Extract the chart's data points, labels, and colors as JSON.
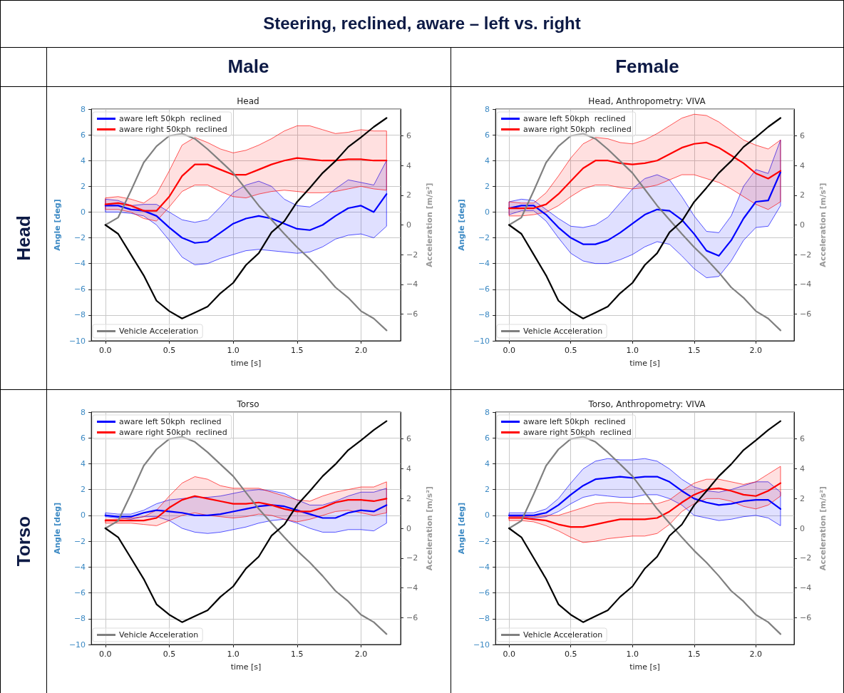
{
  "chart_data": [
    {
      "type": "other",
      "title": "Steering, reclined, aware – left vs. right",
      "annotations": [
        "Male",
        "Female",
        "Head",
        "Torso"
      ]
    },
    {
      "type": "line",
      "title": "Head",
      "xlabel": "time [s]",
      "ylabel": "Angle [deg]",
      "y2label": "Acceleration [m/s²]",
      "x": [
        0,
        0.1,
        0.2,
        0.3,
        0.4,
        0.5,
        0.6,
        0.7,
        0.8,
        0.9,
        1.0,
        1.1,
        1.2,
        1.3,
        1.4,
        1.5,
        1.6,
        1.7,
        1.8,
        1.9,
        2.0,
        2.1,
        2.2
      ],
      "series": [
        {
          "name": "aware left 50kph  reclined",
          "color": "#0000ff",
          "values": [
            0.5,
            0.5,
            0.2,
            0.1,
            -0.3,
            -1.2,
            -2.0,
            -2.4,
            -2.3,
            -1.6,
            -0.9,
            -0.5,
            -0.3,
            -0.5,
            -0.9,
            -1.3,
            -1.4,
            -1.0,
            -0.3,
            0.3,
            0.5,
            0.0,
            1.4
          ],
          "upper": [
            1.0,
            0.9,
            0.5,
            0.6,
            0.6,
            0.0,
            -0.6,
            -0.8,
            -0.6,
            0.4,
            1.5,
            2.1,
            2.4,
            2.0,
            1.0,
            0.5,
            0.4,
            1.0,
            1.8,
            2.5,
            2.3,
            2.1,
            4.0
          ],
          "lower": [
            0.0,
            0.0,
            -0.1,
            -0.3,
            -1.0,
            -2.2,
            -3.5,
            -4.1,
            -4.0,
            -3.6,
            -3.3,
            -3.0,
            -2.9,
            -3.0,
            -3.1,
            -3.2,
            -3.1,
            -2.7,
            -2.1,
            -1.8,
            -1.7,
            -2.0,
            -1.1
          ]
        },
        {
          "name": "aware right 50kph  reclined",
          "color": "#ff0000",
          "values": [
            0.6,
            0.7,
            0.5,
            0.1,
            0.1,
            1.2,
            2.8,
            3.7,
            3.7,
            3.3,
            2.9,
            2.9,
            3.3,
            3.7,
            4.0,
            4.2,
            4.1,
            4.0,
            4.0,
            4.1,
            4.1,
            4.0,
            4.0
          ],
          "upper": [
            1.1,
            1.2,
            1.0,
            0.7,
            1.4,
            3.2,
            5.2,
            5.8,
            5.4,
            4.9,
            4.6,
            4.8,
            5.2,
            5.7,
            6.3,
            6.7,
            6.7,
            6.4,
            6.1,
            6.2,
            6.4,
            6.3,
            6.3
          ],
          "lower": [
            0.2,
            0.2,
            0.0,
            -0.5,
            -0.7,
            0.4,
            1.6,
            2.1,
            2.1,
            1.6,
            1.2,
            1.1,
            1.4,
            1.6,
            1.7,
            1.6,
            1.5,
            1.5,
            1.6,
            1.8,
            2.0,
            1.8,
            1.7
          ]
        },
        {
          "name": "Vehicle Acceleration",
          "color": "#808080",
          "axis": "y2",
          "values": [
            0,
            0.5,
            2.3,
            4.2,
            5.3,
            6.0,
            6.15,
            5.8,
            5.1,
            4.3,
            3.5,
            2.4,
            1.3,
            0.35,
            -0.6,
            -1.5,
            -2.3,
            -3.2,
            -4.2,
            -4.9,
            -5.8,
            -6.3,
            -7.1
          ]
        },
        {
          "color": "#000000",
          "axis": "y2",
          "values": [
            0,
            -0.6,
            -2.0,
            -3.4,
            -5.1,
            -5.8,
            -6.3,
            -5.9,
            -5.5,
            -4.6,
            -3.9,
            -2.7,
            -1.9,
            -0.5,
            0.25,
            1.55,
            2.5,
            3.5,
            4.3,
            5.25,
            5.9,
            6.6,
            7.2
          ]
        }
      ],
      "xlim": [
        -0.11,
        2.31
      ],
      "xticks": [
        {
          "value": 0,
          "label": "0.0"
        },
        {
          "value": 0.5,
          "label": "0.5"
        },
        {
          "value": 1,
          "label": "1.0"
        },
        {
          "value": 1.5,
          "label": "1.5"
        },
        {
          "value": 2,
          "label": "2.0"
        }
      ],
      "ylim": [
        -10,
        8
      ],
      "yticks": [
        {
          "value": -10,
          "label": "−10"
        },
        {
          "value": -8,
          "label": "−8"
        },
        {
          "value": -6,
          "label": "−6"
        },
        {
          "value": -4,
          "label": "−4"
        },
        {
          "value": -2,
          "label": "−2"
        },
        0,
        2,
        4,
        6,
        8
      ],
      "y2lim": [
        -7.8,
        7.8
      ],
      "y2ticks": [
        {
          "value": -6,
          "label": "−6"
        },
        {
          "value": -4,
          "label": "−4"
        },
        {
          "value": -2,
          "label": "−2"
        },
        0,
        2,
        4,
        6
      ],
      "grid": true,
      "legend": "top left",
      "line_style": "solid"
    },
    {
      "type": "line",
      "title": "Head, Anthropometry: VIVA",
      "xlabel": "time [s]",
      "ylabel": "Angle [deg]",
      "y2label": "Acceleration [m/s²]",
      "x": [
        0,
        0.1,
        0.2,
        0.3,
        0.4,
        0.5,
        0.6,
        0.7,
        0.8,
        0.9,
        1.0,
        1.1,
        1.2,
        1.3,
        1.4,
        1.5,
        1.6,
        1.7,
        1.8,
        1.9,
        2.0,
        2.1,
        2.2
      ],
      "series": [
        {
          "name": "aware left 50kph  reclined",
          "color": "#0000ff",
          "values": [
            0.3,
            0.5,
            0.5,
            -0.2,
            -1.2,
            -2.0,
            -2.5,
            -2.5,
            -2.2,
            -1.6,
            -0.9,
            -0.2,
            0.2,
            0.1,
            -0.6,
            -1.7,
            -3.0,
            -3.4,
            -2.2,
            -0.5,
            0.8,
            0.9,
            3.1
          ],
          "upper": [
            0.8,
            1.0,
            0.9,
            0.2,
            -0.5,
            -1.1,
            -1.2,
            -1.0,
            -0.4,
            0.7,
            1.8,
            2.6,
            2.9,
            2.5,
            1.2,
            -0.3,
            -1.5,
            -1.6,
            -0.3,
            2.0,
            3.3,
            3.0,
            5.6
          ],
          "lower": [
            -0.2,
            0.1,
            0.1,
            -0.7,
            -2.0,
            -3.2,
            -3.8,
            -4.0,
            -4.0,
            -3.7,
            -3.3,
            -2.7,
            -2.3,
            -2.5,
            -3.4,
            -4.4,
            -5.1,
            -5.0,
            -3.8,
            -2.2,
            -1.2,
            -1.1,
            0.5
          ]
        },
        {
          "name": "aware right 50kph  reclined",
          "color": "#ff0000",
          "values": [
            0.3,
            0.3,
            0.3,
            0.6,
            1.4,
            2.4,
            3.4,
            4.0,
            4.0,
            3.8,
            3.7,
            3.8,
            4.0,
            4.5,
            5.0,
            5.3,
            5.4,
            5.0,
            4.4,
            3.8,
            3.0,
            2.6,
            3.2
          ],
          "upper": [
            0.8,
            0.7,
            0.7,
            1.5,
            2.8,
            4.2,
            5.3,
            5.8,
            5.7,
            5.4,
            5.3,
            5.6,
            6.1,
            6.7,
            7.3,
            7.6,
            7.5,
            7.0,
            6.3,
            5.6,
            5.2,
            4.9,
            5.6
          ],
          "lower": [
            -0.3,
            -0.3,
            -0.2,
            0.0,
            0.5,
            1.2,
            1.8,
            2.1,
            2.1,
            1.9,
            1.8,
            1.9,
            2.1,
            2.5,
            2.9,
            2.9,
            2.6,
            2.3,
            1.8,
            1.2,
            0.6,
            0.2,
            0.8
          ]
        },
        {
          "name": "Vehicle Acceleration",
          "color": "#808080",
          "axis": "y2",
          "values": [
            0,
            0.5,
            2.3,
            4.2,
            5.3,
            6.0,
            6.15,
            5.8,
            5.1,
            4.3,
            3.5,
            2.4,
            1.3,
            0.35,
            -0.6,
            -1.5,
            -2.3,
            -3.2,
            -4.2,
            -4.9,
            -5.8,
            -6.3,
            -7.1
          ]
        },
        {
          "color": "#000000",
          "axis": "y2",
          "values": [
            0,
            -0.6,
            -2.0,
            -3.4,
            -5.1,
            -5.8,
            -6.3,
            -5.9,
            -5.5,
            -4.6,
            -3.9,
            -2.7,
            -1.9,
            -0.5,
            0.25,
            1.55,
            2.5,
            3.5,
            4.3,
            5.25,
            5.9,
            6.6,
            7.2
          ]
        }
      ],
      "xlim": [
        -0.11,
        2.31
      ],
      "xticks": [
        {
          "value": 0,
          "label": "0.0"
        },
        {
          "value": 0.5,
          "label": "0.5"
        },
        {
          "value": 1,
          "label": "1.0"
        },
        {
          "value": 1.5,
          "label": "1.5"
        },
        {
          "value": 2,
          "label": "2.0"
        }
      ],
      "ylim": [
        -10,
        8
      ],
      "yticks": [
        {
          "value": -10,
          "label": "−10"
        },
        {
          "value": -8,
          "label": "−8"
        },
        {
          "value": -6,
          "label": "−6"
        },
        {
          "value": -4,
          "label": "−4"
        },
        {
          "value": -2,
          "label": "−2"
        },
        0,
        2,
        4,
        6,
        8
      ],
      "y2lim": [
        -7.8,
        7.8
      ],
      "y2ticks": [
        {
          "value": -6,
          "label": "−6"
        },
        {
          "value": -4,
          "label": "−4"
        },
        {
          "value": -2,
          "label": "−2"
        },
        0,
        2,
        4,
        6
      ],
      "grid": true,
      "legend": "top left",
      "line_style": "solid"
    },
    {
      "type": "line",
      "title": "Torso",
      "xlabel": "time [s]",
      "ylabel": "Angle [deg]",
      "y2label": "Acceleration [m/s²]",
      "x": [
        0,
        0.1,
        0.2,
        0.3,
        0.4,
        0.5,
        0.6,
        0.7,
        0.8,
        0.9,
        1.0,
        1.1,
        1.2,
        1.3,
        1.4,
        1.5,
        1.6,
        1.7,
        1.8,
        1.9,
        2.0,
        2.1,
        2.2
      ],
      "series": [
        {
          "name": "aware left 50kph  reclined",
          "color": "#0000ff",
          "values": [
            0.0,
            -0.1,
            -0.1,
            0.2,
            0.4,
            0.3,
            0.2,
            0.0,
            0.0,
            0.1,
            0.3,
            0.5,
            0.7,
            0.8,
            0.7,
            0.4,
            0.1,
            -0.2,
            -0.2,
            0.2,
            0.4,
            0.3,
            0.8
          ],
          "upper": [
            0.2,
            0.1,
            0.1,
            0.4,
            0.9,
            1.2,
            1.3,
            1.4,
            1.4,
            1.5,
            1.7,
            1.9,
            2.0,
            1.9,
            1.7,
            1.2,
            0.8,
            0.8,
            1.1,
            1.5,
            1.8,
            1.8,
            2.1
          ],
          "lower": [
            -0.1,
            -0.2,
            -0.3,
            -0.1,
            -0.1,
            -0.4,
            -1.0,
            -1.3,
            -1.4,
            -1.3,
            -1.1,
            -0.9,
            -0.6,
            -0.4,
            -0.3,
            -0.6,
            -1.0,
            -1.3,
            -1.3,
            -1.1,
            -1.1,
            -1.2,
            -0.6
          ]
        },
        {
          "name": "aware right 50kph  reclined",
          "color": "#ff0000",
          "values": [
            -0.4,
            -0.4,
            -0.4,
            -0.4,
            -0.2,
            0.6,
            1.2,
            1.5,
            1.3,
            1.1,
            0.9,
            0.9,
            1.0,
            0.8,
            0.5,
            0.3,
            0.3,
            0.6,
            1.0,
            1.2,
            1.2,
            1.1,
            1.3
          ],
          "upper": [
            -0.3,
            -0.3,
            -0.2,
            -0.1,
            0.4,
            1.5,
            2.5,
            3.0,
            2.8,
            2.3,
            2.1,
            2.1,
            2.1,
            1.8,
            1.5,
            1.2,
            1.1,
            1.5,
            1.8,
            2.0,
            2.2,
            2.2,
            2.6
          ],
          "lower": [
            -0.6,
            -0.6,
            -0.6,
            -0.7,
            -0.8,
            -0.4,
            0.0,
            0.2,
            0.0,
            -0.1,
            -0.2,
            -0.1,
            0.1,
            0.0,
            -0.3,
            -0.5,
            -0.3,
            0.0,
            0.3,
            0.4,
            0.2,
            0.0,
            0.2
          ]
        },
        {
          "name": "Vehicle Acceleration",
          "color": "#808080",
          "axis": "y2",
          "values": [
            0,
            0.5,
            2.3,
            4.2,
            5.3,
            6.0,
            6.15,
            5.8,
            5.1,
            4.3,
            3.5,
            2.4,
            1.3,
            0.35,
            -0.6,
            -1.5,
            -2.3,
            -3.2,
            -4.2,
            -4.9,
            -5.8,
            -6.3,
            -7.1
          ]
        },
        {
          "color": "#000000",
          "axis": "y2",
          "values": [
            0,
            -0.6,
            -2.0,
            -3.4,
            -5.1,
            -5.8,
            -6.3,
            -5.9,
            -5.5,
            -4.6,
            -3.9,
            -2.7,
            -1.9,
            -0.5,
            0.25,
            1.55,
            2.5,
            3.5,
            4.3,
            5.25,
            5.9,
            6.6,
            7.2
          ]
        }
      ],
      "xlim": [
        -0.11,
        2.31
      ],
      "xticks": [
        {
          "value": 0,
          "label": "0.0"
        },
        {
          "value": 0.5,
          "label": "0.5"
        },
        {
          "value": 1,
          "label": "1.0"
        },
        {
          "value": 1.5,
          "label": "1.5"
        },
        {
          "value": 2,
          "label": "2.0"
        }
      ],
      "ylim": [
        -10,
        8
      ],
      "yticks": [
        {
          "value": -10,
          "label": "−10"
        },
        {
          "value": -8,
          "label": "−8"
        },
        {
          "value": -6,
          "label": "−6"
        },
        {
          "value": -4,
          "label": "−4"
        },
        {
          "value": -2,
          "label": "−2"
        },
        0,
        2,
        4,
        6,
        8
      ],
      "y2lim": [
        -7.8,
        7.8
      ],
      "y2ticks": [
        {
          "value": -6,
          "label": "−6"
        },
        {
          "value": -4,
          "label": "−4"
        },
        {
          "value": -2,
          "label": "−2"
        },
        0,
        2,
        4,
        6
      ],
      "grid": true,
      "legend": "top left",
      "line_style": "solid"
    },
    {
      "type": "line",
      "title": "Torso, Anthropometry: VIVA",
      "xlabel": "time [s]",
      "ylabel": "Angle [deg]",
      "y2label": "Acceleration [m/s²]",
      "x": [
        0,
        0.1,
        0.2,
        0.3,
        0.4,
        0.5,
        0.6,
        0.7,
        0.8,
        0.9,
        1.0,
        1.1,
        1.2,
        1.3,
        1.4,
        1.5,
        1.6,
        1.7,
        1.8,
        1.9,
        2.0,
        2.1,
        2.2
      ],
      "series": [
        {
          "name": "aware left 50kph  reclined",
          "color": "#0000ff",
          "values": [
            0.0,
            0.0,
            0.0,
            0.2,
            0.8,
            1.6,
            2.3,
            2.8,
            2.9,
            3.0,
            2.9,
            3.0,
            3.0,
            2.6,
            1.9,
            1.3,
            1.0,
            0.8,
            0.9,
            1.1,
            1.2,
            1.2,
            0.5
          ],
          "upper": [
            0.2,
            0.2,
            0.2,
            0.5,
            1.3,
            2.5,
            3.6,
            4.2,
            4.4,
            4.3,
            4.3,
            4.4,
            4.2,
            3.6,
            2.8,
            2.2,
            1.9,
            1.8,
            2.0,
            2.3,
            2.6,
            2.6,
            1.8
          ],
          "lower": [
            -0.1,
            -0.1,
            -0.2,
            -0.1,
            0.3,
            0.9,
            1.4,
            1.6,
            1.5,
            1.4,
            1.4,
            1.6,
            1.6,
            1.3,
            0.8,
            0.0,
            -0.2,
            -0.4,
            -0.3,
            -0.1,
            0.0,
            -0.2,
            -0.8
          ]
        },
        {
          "name": "aware right 50kph  reclined",
          "color": "#ff0000",
          "values": [
            -0.2,
            -0.2,
            -0.3,
            -0.4,
            -0.7,
            -0.9,
            -0.9,
            -0.7,
            -0.5,
            -0.3,
            -0.3,
            -0.3,
            -0.2,
            0.3,
            1.0,
            1.6,
            2.0,
            2.1,
            1.9,
            1.6,
            1.5,
            1.9,
            2.5
          ],
          "upper": [
            -0.1,
            -0.1,
            -0.1,
            0.0,
            0.0,
            0.3,
            0.6,
            0.9,
            1.0,
            1.0,
            0.9,
            0.9,
            0.9,
            1.2,
            1.9,
            2.5,
            2.8,
            2.8,
            2.6,
            2.4,
            2.6,
            3.2,
            3.8
          ],
          "lower": [
            -0.4,
            -0.4,
            -0.5,
            -0.8,
            -1.2,
            -1.7,
            -2.1,
            -2.0,
            -1.8,
            -1.7,
            -1.6,
            -1.6,
            -1.4,
            -0.7,
            0.3,
            0.9,
            1.3,
            1.3,
            1.1,
            0.7,
            0.5,
            0.8,
            1.5
          ]
        },
        {
          "name": "Vehicle Acceleration",
          "color": "#808080",
          "axis": "y2",
          "values": [
            0,
            0.5,
            2.3,
            4.2,
            5.3,
            6.0,
            6.15,
            5.8,
            5.1,
            4.3,
            3.5,
            2.4,
            1.3,
            0.35,
            -0.6,
            -1.5,
            -2.3,
            -3.2,
            -4.2,
            -4.9,
            -5.8,
            -6.3,
            -7.1
          ]
        },
        {
          "color": "#000000",
          "axis": "y2",
          "values": [
            0,
            -0.6,
            -2.0,
            -3.4,
            -5.1,
            -5.8,
            -6.3,
            -5.9,
            -5.5,
            -4.6,
            -3.9,
            -2.7,
            -1.9,
            -0.5,
            0.25,
            1.55,
            2.5,
            3.5,
            4.3,
            5.25,
            5.9,
            6.6,
            7.2
          ]
        }
      ],
      "xlim": [
        -0.11,
        2.31
      ],
      "xticks": [
        {
          "value": 0,
          "label": "0.0"
        },
        {
          "value": 0.5,
          "label": "0.5"
        },
        {
          "value": 1,
          "label": "1.0"
        },
        {
          "value": 1.5,
          "label": "1.5"
        },
        {
          "value": 2,
          "label": "2.0"
        }
      ],
      "ylim": [
        -10,
        8
      ],
      "yticks": [
        {
          "value": -10,
          "label": "−10"
        },
        {
          "value": -8,
          "label": "−8"
        },
        {
          "value": -6,
          "label": "−6"
        },
        {
          "value": -4,
          "label": "−4"
        },
        {
          "value": -2,
          "label": "−2"
        },
        0,
        2,
        4,
        6,
        8
      ],
      "y2lim": [
        -7.8,
        7.8
      ],
      "y2ticks": [
        {
          "value": -6,
          "label": "−6"
        },
        {
          "value": -4,
          "label": "−4"
        },
        {
          "value": -2,
          "label": "−2"
        },
        0,
        2,
        4,
        6
      ],
      "grid": true,
      "legend": "top left",
      "line_style": "solid"
    }
  ]
}
